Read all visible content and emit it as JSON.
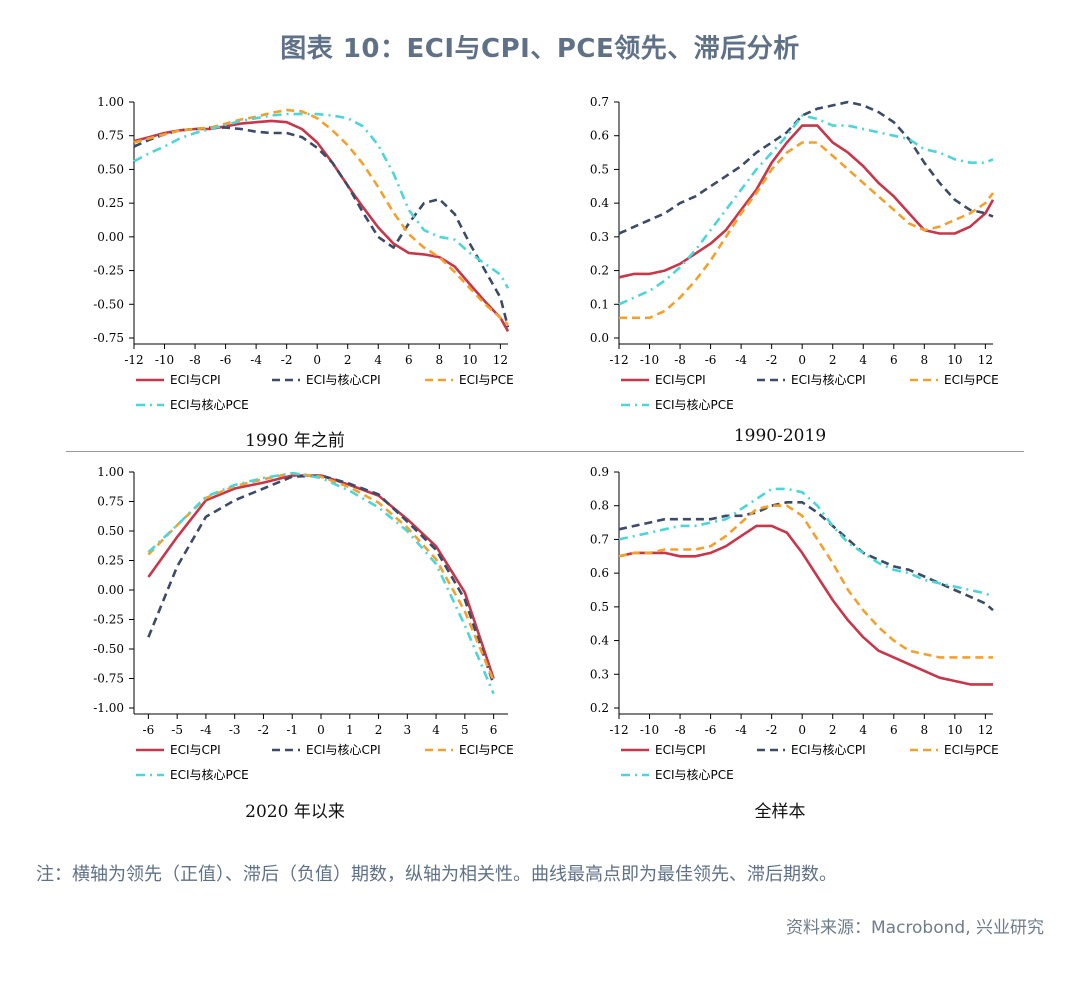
{
  "title": "图表 10：ECI与CPI、PCE领先、滞后分析",
  "footnote": "注：横轴为领先（正值）、滞后（负值）期数，纵轴为相关性。曲线最高点即为最佳领先、滞后期数。",
  "source": "资料来源：Macrobond, 兴业研究",
  "series_colors": {
    "ECI与CPI": "#c8364a",
    "ECI与核心CPI": "#3c4b66",
    "ECI与PCE": "#f4a12c",
    "ECI与核心PCE": "#4dd5d8"
  },
  "series_styles": {
    "ECI与CPI": "solid",
    "ECI与核心CPI": "dash",
    "ECI与PCE": "dash",
    "ECI与核心PCE": "dashdot"
  },
  "chart_data": [
    {
      "type": "line",
      "caption": "1990 年之前",
      "ylim": [
        -0.75,
        1.0
      ],
      "yticks": [
        "1.00",
        "0.75",
        "0.50",
        "0.25",
        "0.00",
        "-0.25",
        "-0.50",
        "-0.75"
      ],
      "ytick_values": [
        1.0,
        0.75,
        0.5,
        0.25,
        0.0,
        -0.25,
        -0.5,
        -0.75
      ],
      "xlim": [
        -12,
        12.5
      ],
      "xticks": [
        -12,
        -10,
        -8,
        -6,
        -4,
        -2,
        0,
        2,
        4,
        6,
        8,
        10,
        12
      ],
      "x": [
        -12,
        -11,
        -10,
        -9,
        -8,
        -7,
        -6,
        -5,
        -4,
        -3,
        -2,
        -1,
        0,
        1,
        2,
        3,
        4,
        5,
        6,
        7,
        8,
        9,
        10,
        11,
        12,
        12.5
      ],
      "series": [
        {
          "name": "ECI与CPI",
          "values": [
            0.71,
            0.74,
            0.77,
            0.79,
            0.8,
            0.8,
            0.82,
            0.84,
            0.85,
            0.86,
            0.85,
            0.8,
            0.7,
            0.55,
            0.38,
            0.22,
            0.07,
            -0.05,
            -0.12,
            -0.13,
            -0.15,
            -0.22,
            -0.35,
            -0.48,
            -0.6,
            -0.7
          ]
        },
        {
          "name": "ECI与核心CPI",
          "values": [
            0.67,
            0.72,
            0.76,
            0.79,
            0.8,
            0.81,
            0.81,
            0.8,
            0.78,
            0.77,
            0.77,
            0.74,
            0.66,
            0.55,
            0.38,
            0.18,
            0.0,
            -0.08,
            0.1,
            0.25,
            0.28,
            0.17,
            -0.05,
            -0.25,
            -0.45,
            -0.67
          ]
        },
        {
          "name": "ECI与PCE",
          "values": [
            0.7,
            0.73,
            0.76,
            0.79,
            0.8,
            0.81,
            0.84,
            0.87,
            0.89,
            0.92,
            0.94,
            0.93,
            0.88,
            0.79,
            0.68,
            0.54,
            0.37,
            0.18,
            0.02,
            -0.08,
            -0.15,
            -0.26,
            -0.38,
            -0.5,
            -0.6,
            -0.65
          ]
        },
        {
          "name": "ECI与核心PCE",
          "values": [
            0.56,
            0.62,
            0.67,
            0.73,
            0.77,
            0.8,
            0.83,
            0.86,
            0.88,
            0.9,
            0.91,
            0.91,
            0.91,
            0.9,
            0.88,
            0.82,
            0.68,
            0.47,
            0.2,
            0.05,
            0.0,
            -0.02,
            -0.12,
            -0.2,
            -0.28,
            -0.38
          ]
        }
      ]
    },
    {
      "type": "line",
      "caption": "1990-2019",
      "ylim": [
        0.0,
        0.7
      ],
      "yticks": [
        "0.7",
        "0.6",
        "0.5",
        "0.4",
        "0.3",
        "0.2",
        "0.1",
        "0.0"
      ],
      "ytick_values": [
        0.7,
        0.6,
        0.5,
        0.4,
        0.3,
        0.2,
        0.1,
        0.0
      ],
      "xlim": [
        -12,
        12.5
      ],
      "xticks": [
        -12,
        -10,
        -8,
        -6,
        -4,
        -2,
        0,
        2,
        4,
        6,
        8,
        10,
        12
      ],
      "x": [
        -12,
        -11,
        -10,
        -9,
        -8,
        -7,
        -6,
        -5,
        -4,
        -3,
        -2,
        -1,
        0,
        1,
        2,
        3,
        4,
        5,
        6,
        7,
        8,
        9,
        10,
        11,
        12,
        12.5
      ],
      "series": [
        {
          "name": "ECI与CPI",
          "values": [
            0.18,
            0.19,
            0.19,
            0.2,
            0.22,
            0.25,
            0.28,
            0.32,
            0.38,
            0.44,
            0.52,
            0.58,
            0.63,
            0.63,
            0.58,
            0.55,
            0.51,
            0.46,
            0.42,
            0.37,
            0.32,
            0.31,
            0.31,
            0.33,
            0.37,
            0.41
          ]
        },
        {
          "name": "ECI与核心CPI",
          "values": [
            0.31,
            0.33,
            0.35,
            0.37,
            0.4,
            0.42,
            0.45,
            0.48,
            0.51,
            0.55,
            0.58,
            0.61,
            0.66,
            0.68,
            0.69,
            0.7,
            0.69,
            0.67,
            0.64,
            0.59,
            0.52,
            0.46,
            0.41,
            0.38,
            0.37,
            0.36
          ]
        },
        {
          "name": "ECI与PCE",
          "values": [
            0.06,
            0.06,
            0.06,
            0.08,
            0.12,
            0.17,
            0.23,
            0.3,
            0.37,
            0.43,
            0.5,
            0.55,
            0.58,
            0.58,
            0.54,
            0.5,
            0.46,
            0.42,
            0.38,
            0.34,
            0.32,
            0.33,
            0.35,
            0.37,
            0.4,
            0.43
          ]
        },
        {
          "name": "ECI与核心PCE",
          "values": [
            0.1,
            0.12,
            0.14,
            0.17,
            0.21,
            0.26,
            0.32,
            0.38,
            0.44,
            0.5,
            0.55,
            0.6,
            0.66,
            0.65,
            0.63,
            0.63,
            0.62,
            0.61,
            0.6,
            0.59,
            0.56,
            0.55,
            0.53,
            0.52,
            0.52,
            0.53
          ]
        }
      ]
    },
    {
      "type": "line",
      "caption": "2020 年以来",
      "ylim": [
        -1.0,
        1.0
      ],
      "yticks": [
        "1.00",
        "0.75",
        "0.50",
        "0.25",
        "0.00",
        "-0.25",
        "-0.50",
        "-0.75",
        "-1.00"
      ],
      "ytick_values": [
        1.0,
        0.75,
        0.5,
        0.25,
        0.0,
        -0.25,
        -0.5,
        -0.75,
        -1.0
      ],
      "xlim": [
        -6.5,
        6.5
      ],
      "xticks": [
        -6,
        -5,
        -4,
        -3,
        -2,
        -1,
        0,
        1,
        2,
        3,
        4,
        5,
        6
      ],
      "x": [
        -6,
        -5,
        -4,
        -3,
        -2,
        -1,
        0,
        1,
        2,
        3,
        4,
        5,
        6
      ],
      "series": [
        {
          "name": "ECI与CPI",
          "values": [
            0.11,
            0.45,
            0.76,
            0.86,
            0.91,
            0.97,
            0.97,
            0.89,
            0.8,
            0.6,
            0.37,
            -0.02,
            -0.75
          ]
        },
        {
          "name": "ECI与核心CPI",
          "values": [
            -0.4,
            0.2,
            0.62,
            0.76,
            0.86,
            0.96,
            0.97,
            0.9,
            0.81,
            0.58,
            0.34,
            -0.08,
            -0.8
          ]
        },
        {
          "name": "ECI与PCE",
          "values": [
            0.3,
            0.55,
            0.78,
            0.88,
            0.94,
            0.99,
            0.96,
            0.87,
            0.74,
            0.53,
            0.26,
            -0.18,
            -0.77
          ]
        },
        {
          "name": "ECI与核心PCE",
          "values": [
            0.32,
            0.55,
            0.79,
            0.89,
            0.95,
            0.99,
            0.95,
            0.84,
            0.7,
            0.5,
            0.22,
            -0.3,
            -0.88
          ]
        }
      ]
    },
    {
      "type": "line",
      "caption": "全样本",
      "ylim": [
        0.2,
        0.9
      ],
      "yticks": [
        "0.9",
        "0.8",
        "0.7",
        "0.6",
        "0.5",
        "0.4",
        "0.3",
        "0.2"
      ],
      "ytick_values": [
        0.9,
        0.8,
        0.7,
        0.6,
        0.5,
        0.4,
        0.3,
        0.2
      ],
      "xlim": [
        -12,
        12.5
      ],
      "xticks": [
        -12,
        -10,
        -8,
        -6,
        -4,
        -2,
        0,
        2,
        4,
        6,
        8,
        10,
        12
      ],
      "x": [
        -12,
        -11,
        -10,
        -9,
        -8,
        -7,
        -6,
        -5,
        -4,
        -3,
        -2,
        -1,
        0,
        1,
        2,
        3,
        4,
        5,
        6,
        7,
        8,
        9,
        10,
        11,
        12,
        12.5
      ],
      "series": [
        {
          "name": "ECI与CPI",
          "values": [
            0.65,
            0.66,
            0.66,
            0.66,
            0.65,
            0.65,
            0.66,
            0.68,
            0.71,
            0.74,
            0.74,
            0.72,
            0.66,
            0.59,
            0.52,
            0.46,
            0.41,
            0.37,
            0.35,
            0.33,
            0.31,
            0.29,
            0.28,
            0.27,
            0.27,
            0.27
          ]
        },
        {
          "name": "ECI与核心CPI",
          "values": [
            0.73,
            0.74,
            0.75,
            0.76,
            0.76,
            0.76,
            0.76,
            0.77,
            0.77,
            0.78,
            0.8,
            0.81,
            0.81,
            0.78,
            0.74,
            0.7,
            0.66,
            0.64,
            0.62,
            0.61,
            0.59,
            0.57,
            0.55,
            0.53,
            0.51,
            0.49
          ]
        },
        {
          "name": "ECI与PCE",
          "values": [
            0.65,
            0.66,
            0.66,
            0.67,
            0.67,
            0.67,
            0.68,
            0.71,
            0.75,
            0.79,
            0.8,
            0.8,
            0.77,
            0.7,
            0.63,
            0.55,
            0.49,
            0.44,
            0.4,
            0.37,
            0.36,
            0.35,
            0.35,
            0.35,
            0.35,
            0.35
          ]
        },
        {
          "name": "ECI与核心PCE",
          "values": [
            0.7,
            0.71,
            0.72,
            0.73,
            0.74,
            0.74,
            0.75,
            0.76,
            0.79,
            0.82,
            0.85,
            0.85,
            0.84,
            0.8,
            0.74,
            0.69,
            0.66,
            0.63,
            0.61,
            0.6,
            0.58,
            0.57,
            0.56,
            0.55,
            0.54,
            0.53
          ]
        }
      ]
    }
  ]
}
